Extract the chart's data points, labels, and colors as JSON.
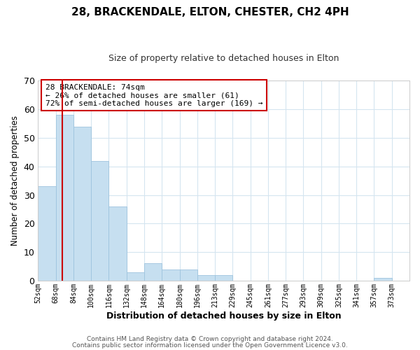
{
  "title": "28, BRACKENDALE, ELTON, CHESTER, CH2 4PH",
  "subtitle": "Size of property relative to detached houses in Elton",
  "xlabel": "Distribution of detached houses by size in Elton",
  "ylabel": "Number of detached properties",
  "bin_labels": [
    "52sqm",
    "68sqm",
    "84sqm",
    "100sqm",
    "116sqm",
    "132sqm",
    "148sqm",
    "164sqm",
    "180sqm",
    "196sqm",
    "213sqm",
    "229sqm",
    "245sqm",
    "261sqm",
    "277sqm",
    "293sqm",
    "309sqm",
    "325sqm",
    "341sqm",
    "357sqm",
    "373sqm"
  ],
  "bar_heights": [
    33,
    58,
    54,
    42,
    26,
    3,
    6,
    4,
    4,
    2,
    2,
    0,
    0,
    0,
    0,
    0,
    0,
    0,
    0,
    1,
    0
  ],
  "bar_color": "#c6dff0",
  "bar_edgecolor": "#9ec4de",
  "vline_x": 1.37,
  "vline_color": "#cc0000",
  "ylim": [
    0,
    70
  ],
  "yticks": [
    0,
    10,
    20,
    30,
    40,
    50,
    60,
    70
  ],
  "annotation_text": "28 BRACKENDALE: 74sqm\n← 26% of detached houses are smaller (61)\n72% of semi-detached houses are larger (169) →",
  "annotation_box_edgecolor": "#cc0000",
  "annotation_box_facecolor": "#ffffff",
  "footer1": "Contains HM Land Registry data © Crown copyright and database right 2024.",
  "footer2": "Contains public sector information licensed under the Open Government Licence v3.0.",
  "background_color": "#ffffff",
  "grid_color": "#d5e5f0"
}
